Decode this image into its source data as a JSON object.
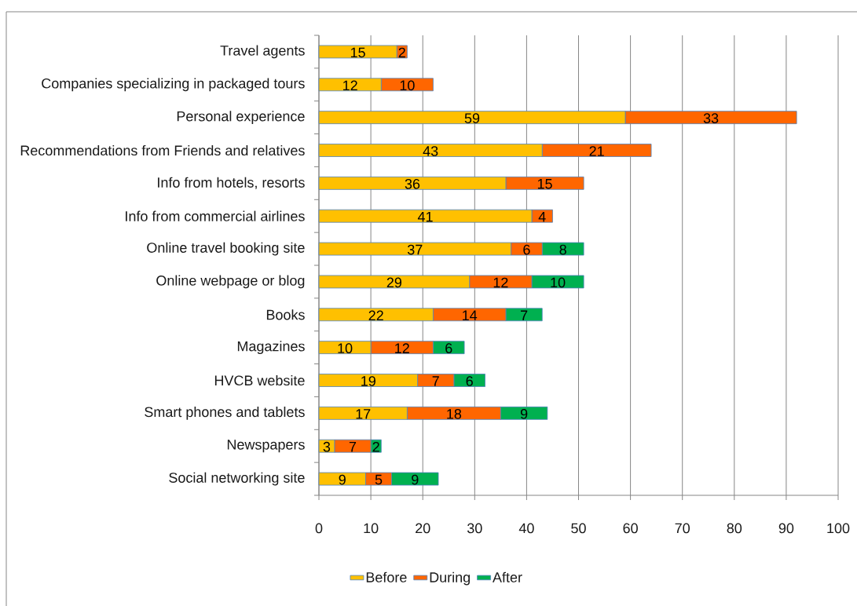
{
  "chart_data": {
    "type": "bar",
    "orientation": "horizontal",
    "stacked": true,
    "categories": [
      "Travel agents",
      "Companies specializing in packaged tours",
      "Personal experience",
      "Recommendations from Friends and relatives",
      "Info from hotels, resorts",
      "Info from commercial airlines",
      "Online travel booking site",
      "Online webpage or blog",
      "Books",
      "Magazines",
      "HVCB website",
      "Smart phones and tablets",
      "Newspapers",
      "Social networking site"
    ],
    "series": [
      {
        "name": "Before",
        "color": "#ffc000",
        "values": [
          15,
          12,
          59,
          43,
          36,
          41,
          37,
          29,
          22,
          10,
          19,
          17,
          3,
          9
        ]
      },
      {
        "name": "During",
        "color": "#ff6600",
        "values": [
          2,
          10,
          33,
          21,
          15,
          4,
          6,
          12,
          14,
          12,
          7,
          18,
          7,
          5
        ]
      },
      {
        "name": "After",
        "color": "#00b050",
        "values": [
          null,
          null,
          null,
          null,
          null,
          null,
          8,
          10,
          7,
          6,
          6,
          9,
          2,
          9
        ]
      }
    ],
    "xlim": [
      0,
      100
    ],
    "xticks": [
      0,
      10,
      20,
      30,
      40,
      50,
      60,
      70,
      80,
      90,
      100
    ],
    "grid": "x",
    "legend": "bottom",
    "data_labels": true
  }
}
